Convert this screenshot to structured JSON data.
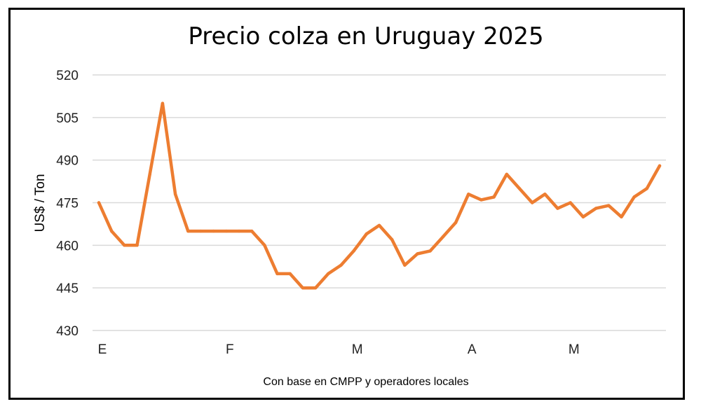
{
  "chart_data": {
    "type": "line",
    "title": "Precio colza en Uruguay 2025",
    "xlabel": "Con base en CMPP y operadores locales",
    "ylabel": "US$ / Ton",
    "ylim": [
      430,
      520
    ],
    "yticks": [
      430,
      445,
      460,
      475,
      490,
      505,
      520
    ],
    "xticks": [
      {
        "label": "E",
        "index": 0
      },
      {
        "label": "F",
        "index": 10
      },
      {
        "label": "M",
        "index": 20
      },
      {
        "label": "A",
        "index": 29
      },
      {
        "label": "M",
        "index": 37
      }
    ],
    "grid": true,
    "legend": "none",
    "series": [
      {
        "color": "#ED7D31",
        "values": [
          475,
          465,
          460,
          460,
          485,
          510,
          478,
          465,
          465,
          465,
          465,
          465,
          465,
          460,
          450,
          450,
          445,
          445,
          450,
          453,
          458,
          464,
          467,
          462,
          453,
          457,
          458,
          463,
          468,
          478,
          476,
          477,
          485,
          480,
          475,
          478,
          473,
          475,
          470,
          473,
          474,
          470,
          477,
          480,
          488
        ]
      }
    ]
  }
}
